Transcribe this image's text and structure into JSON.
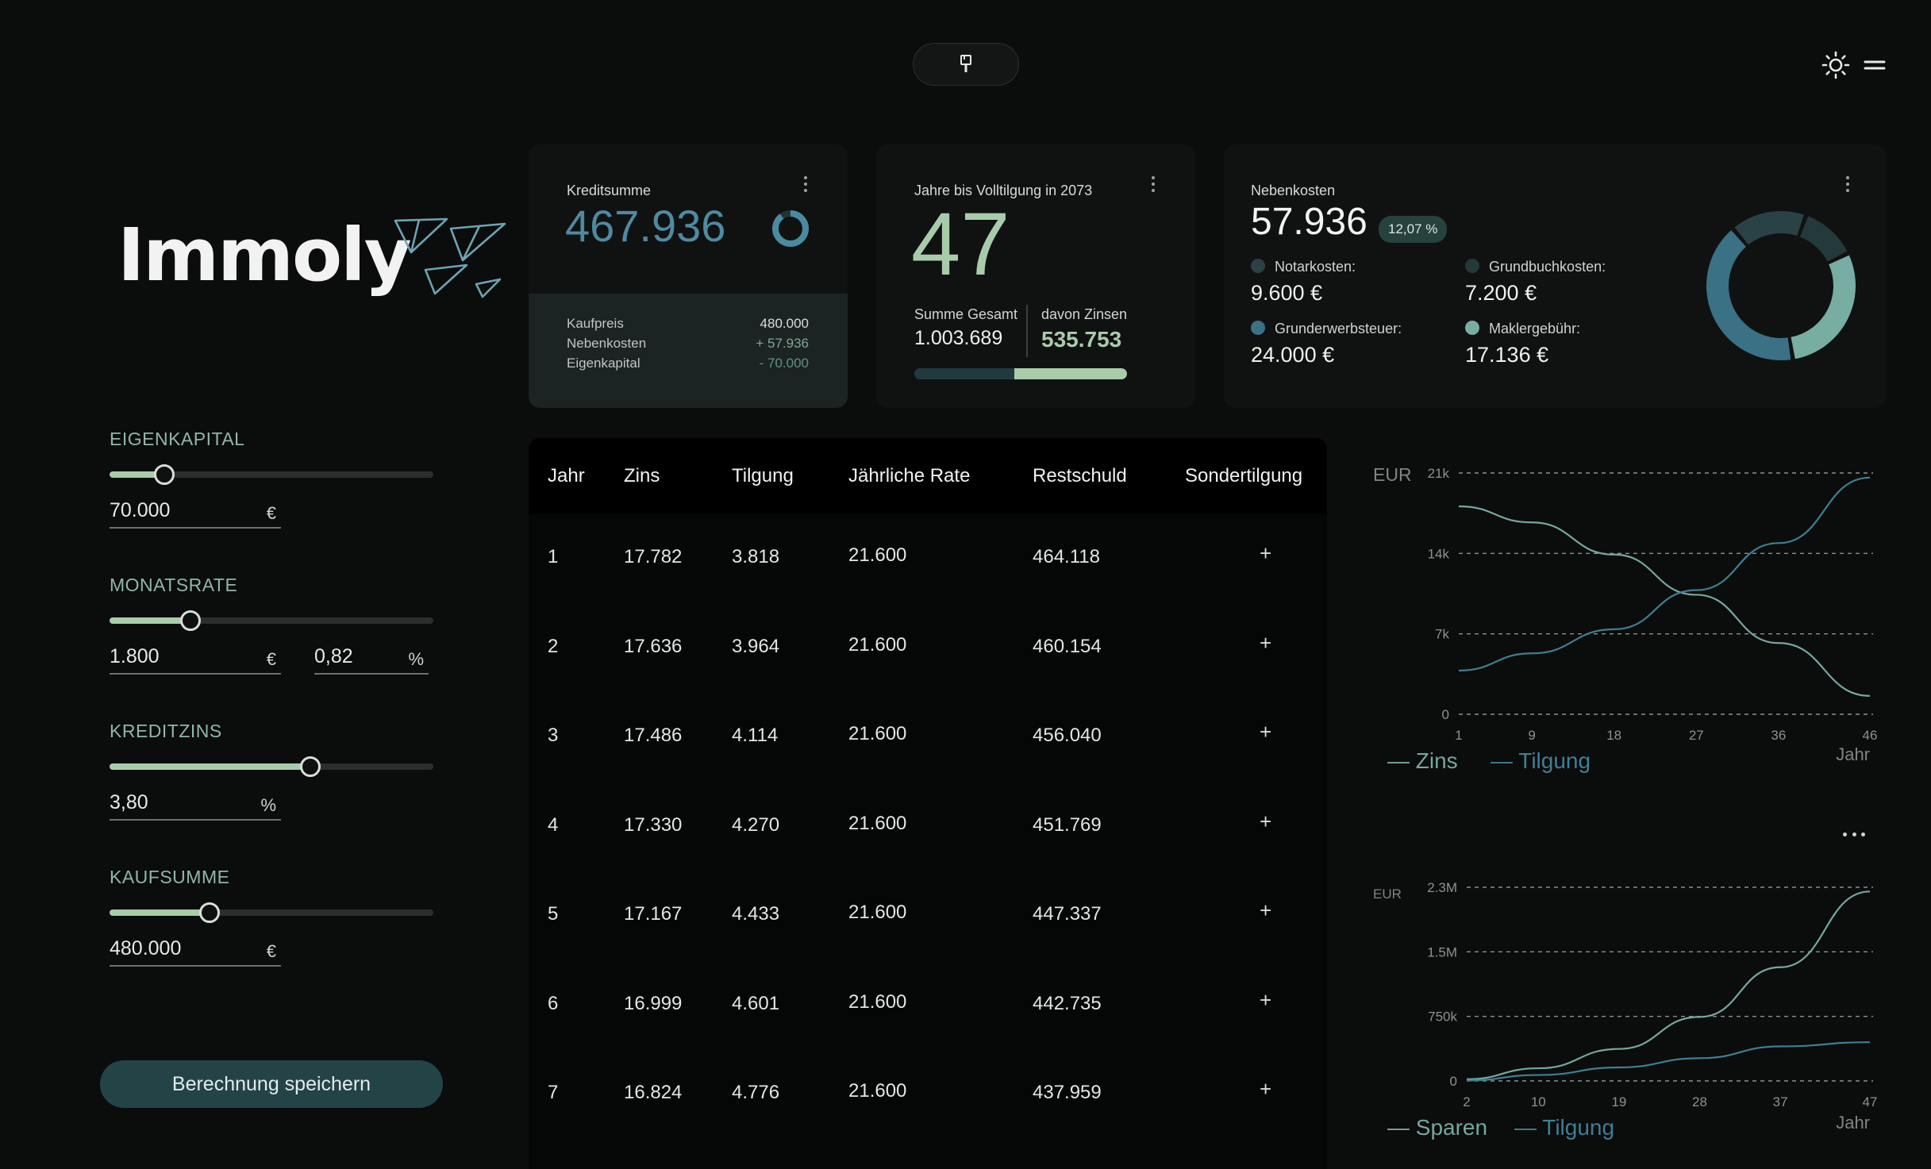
{
  "app": {
    "name": "Immoly"
  },
  "header": {
    "center_icon": "brush-icon",
    "theme_icon": "sun-icon",
    "menu_icon": "menu-icon"
  },
  "controls": {
    "eigenkapital": {
      "label": "EIGENKAPITAL",
      "value": "70.000",
      "unit": "€",
      "level": 0.17
    },
    "monatsrate": {
      "label": "MONATSRATE",
      "value": "1.800",
      "unit": "€",
      "second_value": "0,82",
      "second_unit": "%",
      "level": 0.25
    },
    "kreditzins": {
      "label": "KREDITZINS",
      "value": "3,80",
      "unit": "%",
      "level": 0.62
    },
    "kaufsumme": {
      "label": "KAUFSUMME",
      "value": "480.000",
      "unit": "€",
      "level": 0.31
    },
    "save_label": "Berechnung speichern"
  },
  "cards": {
    "kreditsumme": {
      "title": "Kreditsumme",
      "value": "467.936",
      "donut_fraction": 0.9,
      "breakdown": [
        {
          "label": "Kaufpreis",
          "value": "480.000",
          "color": "#d9dedc"
        },
        {
          "label": "Nebenkosten",
          "value": "+ 57.936",
          "color": "#7aa894"
        },
        {
          "label": "Eigenkapital",
          "value": "- 70.000",
          "color": "#5f8f86"
        }
      ]
    },
    "jahre": {
      "title": "Jahre bis Volltilgung in 2073",
      "value": "47",
      "total_label": "Summe Gesamt",
      "total_value": "1.003.689",
      "interest_label": "davon Zinsen",
      "interest_value": "535.753",
      "interest_fraction": 0.53
    },
    "nebenkosten": {
      "title": "Nebenkosten",
      "value": "57.936",
      "badge": "12,07 %",
      "items": [
        {
          "label": "Notarkosten:",
          "value": "9.600 €",
          "color": "#2a4246",
          "share": 0.166
        },
        {
          "label": "Grundbuchkosten:",
          "value": "7.200 €",
          "color": "#24393b",
          "share": 0.124
        },
        {
          "label": "Grunderwerbsteuer:",
          "value": "24.000 €",
          "color": "#3a7184",
          "share": 0.414
        },
        {
          "label": "Maklergebühr:",
          "value": "17.136 €",
          "color": "#78ada3",
          "share": 0.296
        }
      ]
    }
  },
  "table": {
    "columns": [
      "Jahr",
      "Zins",
      "Tilgung",
      "Jährliche Rate",
      "Restschuld",
      "Sondertilgung"
    ],
    "rows": [
      [
        "1",
        "17.782",
        "3.818",
        "21.600",
        "464.118",
        "+"
      ],
      [
        "2",
        "17.636",
        "3.964",
        "21.600",
        "460.154",
        "+"
      ],
      [
        "3",
        "17.486",
        "4.114",
        "21.600",
        "456.040",
        "+"
      ],
      [
        "4",
        "17.330",
        "4.270",
        "21.600",
        "451.769",
        "+"
      ],
      [
        "5",
        "17.167",
        "4.433",
        "21.600",
        "447.337",
        "+"
      ],
      [
        "6",
        "16.999",
        "4.601",
        "21.600",
        "442.735",
        "+"
      ],
      [
        "7",
        "16.824",
        "4.776",
        "21.600",
        "437.959",
        "+"
      ]
    ]
  },
  "chart_data": [
    {
      "type": "line",
      "ylabel": "EUR",
      "xlabel": "Jahr",
      "x_ticks": [
        "1",
        "9",
        "18",
        "27",
        "36",
        "46"
      ],
      "y_ticks": [
        "0",
        "7k",
        "14k",
        "21k"
      ],
      "ylim": [
        0,
        21000
      ],
      "xlim": [
        1,
        46
      ],
      "grid": true,
      "legend": "bottom-left",
      "series": [
        {
          "name": "Zins",
          "color": "#74a8a0",
          "x": [
            1,
            9,
            18,
            27,
            36,
            46
          ],
          "values": [
            18100,
            16700,
            13900,
            10400,
            6200,
            1600
          ]
        },
        {
          "name": "Tilgung",
          "color": "#3f7f95",
          "x": [
            1,
            9,
            18,
            27,
            36,
            46
          ],
          "values": [
            3800,
            5300,
            7400,
            10800,
            14900,
            20600
          ]
        }
      ]
    },
    {
      "type": "line",
      "ylabel": "EUR",
      "xlabel": "Jahr",
      "x_ticks": [
        "2",
        "10",
        "19",
        "28",
        "37",
        "47"
      ],
      "y_ticks": [
        "0",
        "750k",
        "1.5M",
        "2.3M"
      ],
      "ylim": [
        0,
        2300000
      ],
      "xlim": [
        2,
        47
      ],
      "grid": true,
      "legend": "bottom-left",
      "series": [
        {
          "name": "Sparen",
          "color": "#74a8a0",
          "x": [
            2,
            10,
            19,
            28,
            37,
            47
          ],
          "values": [
            20000,
            150000,
            380000,
            760000,
            1350000,
            2250000
          ]
        },
        {
          "name": "Tilgung",
          "color": "#3f7f95",
          "x": [
            2,
            10,
            19,
            28,
            37,
            47
          ],
          "values": [
            5000,
            70000,
            160000,
            270000,
            410000,
            460000
          ]
        }
      ]
    }
  ]
}
